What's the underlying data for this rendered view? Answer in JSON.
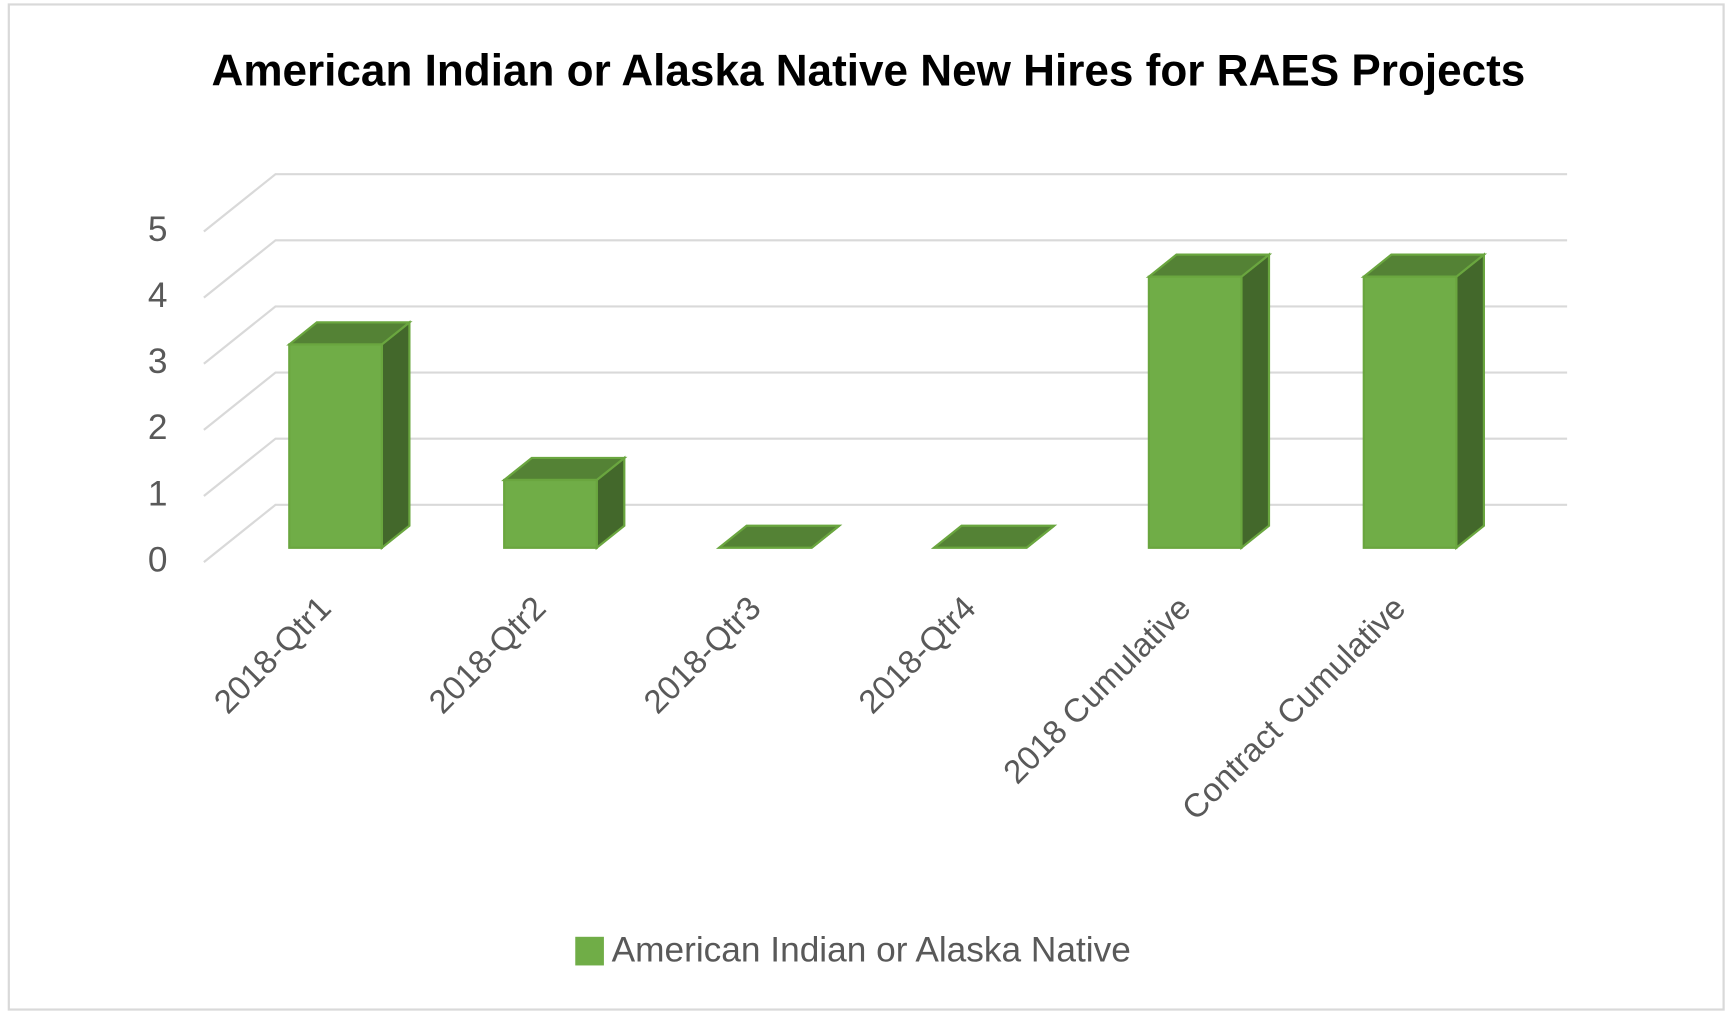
{
  "chart_data": {
    "type": "bar3d",
    "title": "American Indian or Alaska Native New Hires for RAES Projects",
    "categories": [
      "2018-Qtr1",
      "2018-Qtr2",
      "2018-Qtr3",
      "2018-Qtr4",
      "2018 Cumulative",
      "Contract Cumulative"
    ],
    "series": [
      {
        "name": "American Indian or Alaska Native",
        "color": "#70ad47",
        "values": [
          3,
          1,
          0,
          0,
          4,
          4
        ]
      }
    ],
    "ylim": [
      0,
      5
    ],
    "yticks": [
      0,
      1,
      2,
      3,
      4,
      5
    ],
    "grid": true,
    "legend": "bottom"
  }
}
